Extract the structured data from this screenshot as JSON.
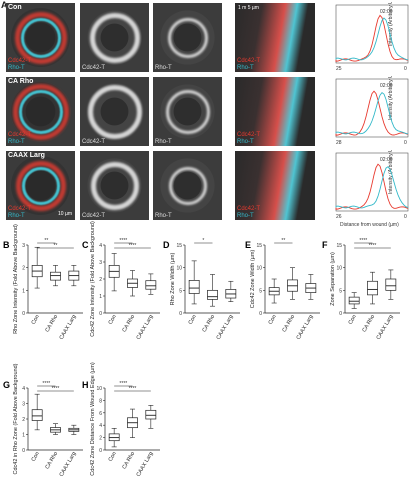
{
  "panel_letters": {
    "A": "A",
    "B": "B",
    "C": "C",
    "D": "D",
    "E": "E",
    "F": "F",
    "G": "G",
    "H": "H"
  },
  "rows": [
    {
      "name": "Con",
      "cdc42": "Cdc42-T",
      "rho": "Rho-T",
      "kymo_red": "Cdc42-T",
      "kymo_blue": "Rho-T",
      "time": "02:00",
      "x_left": "25",
      "x_right": "0"
    },
    {
      "name": "CA Rho",
      "cdc42": "Cdc42-T",
      "rho": "Rho-T",
      "kymo_red": "Cdc42-T",
      "kymo_blue": "Rho-T",
      "time": "02:00",
      "x_left": "28",
      "x_right": "0"
    },
    {
      "name": "CAAX Larg",
      "cdc42": "Cdc42-T",
      "rho": "Rho-T",
      "kymo_red": "Cdc42-T",
      "kymo_blue": "Rho-T",
      "time": "02:00",
      "x_left": "26",
      "x_right": "0"
    }
  ],
  "merge_labels": {
    "red": "Cdc42-T",
    "blue": "Rho-T"
  },
  "scalebar_label": "10 µm",
  "kymo_scale": {
    "time": "1 m",
    "space": "5 µm"
  },
  "line_ylabel": "Intensity (Arbitrary Units)",
  "line_xlabel": "Distance from wound (µm)",
  "colors": {
    "red": "#e83a2f",
    "cyan": "#34b9c9",
    "bg": "#ffffff"
  },
  "chart_data": [
    {
      "panel": "B",
      "type": "box",
      "ylabel": "Rho Zone Intensity (Fold Above Background)",
      "categories": [
        "Con",
        "CA Rho",
        "CAAX Larg"
      ],
      "boxes": [
        {
          "min": 1.1,
          "q1": 1.6,
          "median": 1.85,
          "q3": 2.1,
          "max": 2.9
        },
        {
          "min": 1.2,
          "q1": 1.45,
          "median": 1.65,
          "q3": 1.8,
          "max": 2.1
        },
        {
          "min": 1.2,
          "q1": 1.45,
          "median": 1.65,
          "q3": 1.85,
          "max": 2.1
        }
      ],
      "ylim": [
        0,
        3
      ],
      "yticks": [
        0,
        1,
        2,
        3
      ],
      "signif": [
        {
          "from": 0,
          "to": 1,
          "label": "**"
        },
        {
          "from": 0,
          "to": 2,
          "label": "**"
        }
      ]
    },
    {
      "panel": "C",
      "type": "box",
      "ylabel": "Cdc42 Zone Intensity (Fold Above Background)",
      "categories": [
        "Con",
        "CA Rho",
        "CAAX Larg"
      ],
      "boxes": [
        {
          "min": 1.3,
          "q1": 2.1,
          "median": 2.45,
          "q3": 2.8,
          "max": 3.5
        },
        {
          "min": 1.0,
          "q1": 1.5,
          "median": 1.75,
          "q3": 2.0,
          "max": 2.5
        },
        {
          "min": 1.1,
          "q1": 1.4,
          "median": 1.6,
          "q3": 1.9,
          "max": 2.3
        }
      ],
      "ylim": [
        0,
        4
      ],
      "yticks": [
        0,
        1,
        2,
        3,
        4
      ],
      "signif": [
        {
          "from": 0,
          "to": 1,
          "label": "****"
        },
        {
          "from": 0,
          "to": 2,
          "label": "****"
        }
      ]
    },
    {
      "panel": "D",
      "type": "box",
      "ylabel": "Rho Zone Width (µm)",
      "categories": [
        "Con",
        "CA Rho",
        "CAAX Larg"
      ],
      "boxes": [
        {
          "min": 2,
          "q1": 4.3,
          "median": 5.5,
          "q3": 7.2,
          "max": 11.5
        },
        {
          "min": 1.5,
          "q1": 3,
          "median": 3.6,
          "q3": 5,
          "max": 8.5
        },
        {
          "min": 2.5,
          "q1": 3.3,
          "median": 4.2,
          "q3": 5.2,
          "max": 7
        }
      ],
      "ylim": [
        0,
        15
      ],
      "yticks": [
        0,
        5,
        10,
        15
      ],
      "signif": [
        {
          "from": 0,
          "to": 1,
          "label": "*"
        }
      ]
    },
    {
      "panel": "E",
      "type": "box",
      "ylabel": "Cdc42 Zone Width (µm)",
      "categories": [
        "Con",
        "CA Rho",
        "CAAX Larg"
      ],
      "boxes": [
        {
          "min": 2.2,
          "q1": 4,
          "median": 4.8,
          "q3": 5.6,
          "max": 7.5
        },
        {
          "min": 3,
          "q1": 4.8,
          "median": 6,
          "q3": 7.3,
          "max": 10
        },
        {
          "min": 3,
          "q1": 4.5,
          "median": 5.5,
          "q3": 6.5,
          "max": 8.5
        }
      ],
      "ylim": [
        0,
        15
      ],
      "yticks": [
        0,
        5,
        10,
        15
      ],
      "signif": [
        {
          "from": 0,
          "to": 1,
          "label": "**"
        }
      ]
    },
    {
      "panel": "F",
      "type": "box",
      "ylabel": "Zone Separation (µm)",
      "categories": [
        "Con",
        "CA Rho",
        "CAAX Larg"
      ],
      "boxes": [
        {
          "min": 1,
          "q1": 2,
          "median": 2.6,
          "q3": 3.5,
          "max": 4.5
        },
        {
          "min": 2,
          "q1": 4,
          "median": 5.2,
          "q3": 7,
          "max": 9
        },
        {
          "min": 3,
          "q1": 5,
          "median": 6,
          "q3": 7.5,
          "max": 9.5
        }
      ],
      "ylim": [
        0,
        15
      ],
      "yticks": [
        0,
        5,
        10,
        15
      ],
      "signif": [
        {
          "from": 0,
          "to": 1,
          "label": "****"
        },
        {
          "from": 0,
          "to": 2,
          "label": "****"
        }
      ]
    },
    {
      "panel": "G",
      "type": "box",
      "ylabel": "Cdc42 in Rho Zone (Fold Above Background)",
      "categories": [
        "Con",
        "CA Rho",
        "CAAX Larg"
      ],
      "boxes": [
        {
          "min": 1.3,
          "q1": 1.9,
          "median": 2.2,
          "q3": 2.6,
          "max": 3.6
        },
        {
          "min": 1.0,
          "q1": 1.15,
          "median": 1.3,
          "q3": 1.45,
          "max": 1.7
        },
        {
          "min": 1.0,
          "q1": 1.2,
          "median": 1.3,
          "q3": 1.4,
          "max": 1.6
        }
      ],
      "ylim": [
        0,
        4
      ],
      "yticks": [
        0,
        1,
        2,
        3,
        4
      ],
      "signif": [
        {
          "from": 0,
          "to": 1,
          "label": "****"
        },
        {
          "from": 0,
          "to": 2,
          "label": "****"
        }
      ]
    },
    {
      "panel": "H",
      "type": "box",
      "ylabel": "Cdc42 Zone Distance From Wound Edge (µm)",
      "categories": [
        "Con",
        "CA Rho",
        "CAAX Larg"
      ],
      "boxes": [
        {
          "min": 0.5,
          "q1": 1.5,
          "median": 2,
          "q3": 2.6,
          "max": 3.5
        },
        {
          "min": 2,
          "q1": 3.6,
          "median": 4.4,
          "q3": 5.2,
          "max": 6.6
        },
        {
          "min": 3.5,
          "q1": 5,
          "median": 5.6,
          "q3": 6.4,
          "max": 7.2
        }
      ],
      "ylim": [
        0,
        10
      ],
      "yticks": [
        0,
        2,
        4,
        6,
        8,
        10
      ],
      "signif": [
        {
          "from": 0,
          "to": 1,
          "label": "****"
        },
        {
          "from": 0,
          "to": 2,
          "label": "****"
        }
      ]
    }
  ]
}
